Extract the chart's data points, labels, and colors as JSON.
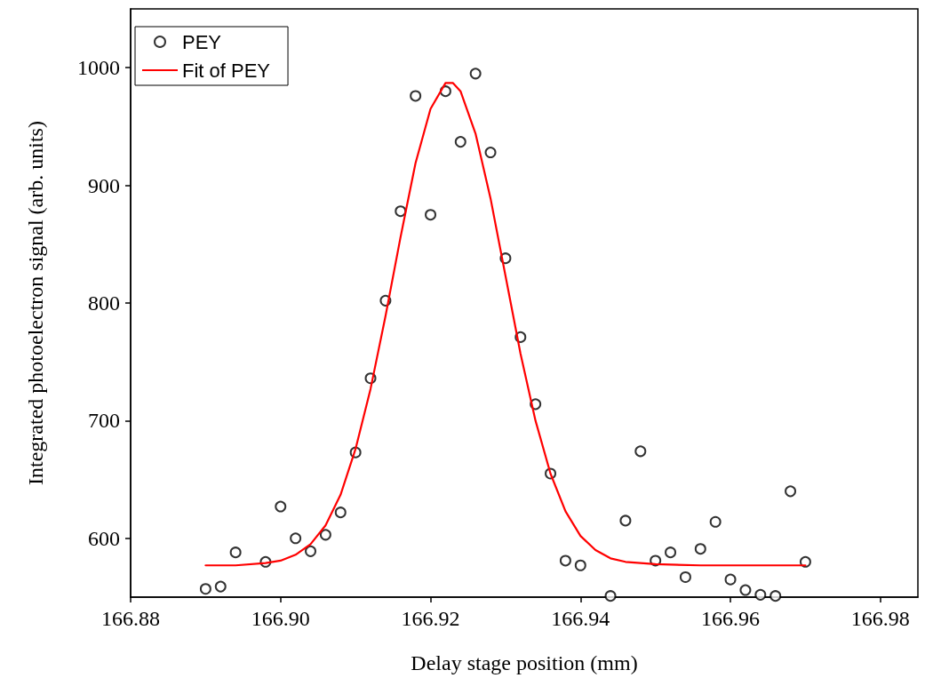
{
  "chart_data": {
    "type": "scatter",
    "xlabel": "Delay stage position (mm)",
    "ylabel": "Integrated photoelectron signal (arb. units)",
    "xlim": [
      166.88,
      166.985
    ],
    "ylim": [
      550,
      1050
    ],
    "xticks": [
      {
        "value": 166.88,
        "label": "166.88"
      },
      {
        "value": 166.9,
        "label": "166.90"
      },
      {
        "value": 166.92,
        "label": "166.92"
      },
      {
        "value": 166.94,
        "label": "166.94"
      },
      {
        "value": 166.96,
        "label": "166.96"
      },
      {
        "value": 166.98,
        "label": "166.98"
      }
    ],
    "yticks": [
      600,
      700,
      800,
      900,
      1000
    ],
    "grid": false,
    "legend": "top left",
    "series": [
      {
        "name": "PEY",
        "type": "scatter",
        "marker": "circle",
        "color": "#000000",
        "x": [
          166.89,
          166.892,
          166.894,
          166.898,
          166.9,
          166.902,
          166.904,
          166.906,
          166.908,
          166.91,
          166.912,
          166.914,
          166.916,
          166.918,
          166.92,
          166.922,
          166.924,
          166.926,
          166.928,
          166.93,
          166.932,
          166.934,
          166.936,
          166.938,
          166.94,
          166.944,
          166.946,
          166.948,
          166.95,
          166.952,
          166.954,
          166.956,
          166.958,
          166.96,
          166.962,
          166.964,
          166.966,
          166.968,
          166.97
        ],
        "values": [
          557,
          559,
          588,
          580,
          627,
          600,
          589,
          603,
          622,
          673,
          736,
          802,
          878,
          976,
          875,
          980,
          937,
          995,
          928,
          838,
          771,
          714,
          655,
          581,
          577,
          551,
          615,
          674,
          581,
          588,
          567,
          591,
          614,
          565,
          556,
          552,
          551,
          640,
          580
        ]
      },
      {
        "name": "Fit of PEY",
        "type": "line",
        "marker": "none",
        "line_style": "solid",
        "color": "#ff0000",
        "x": [
          166.89,
          166.894,
          166.898,
          166.9,
          166.902,
          166.904,
          166.906,
          166.908,
          166.91,
          166.912,
          166.914,
          166.916,
          166.918,
          166.92,
          166.922,
          166.923,
          166.924,
          166.926,
          166.928,
          166.93,
          166.932,
          166.934,
          166.936,
          166.938,
          166.94,
          166.942,
          166.944,
          166.946,
          166.95,
          166.956,
          166.97
        ],
        "values": [
          577,
          577,
          579,
          581,
          586,
          595,
          611,
          637,
          676,
          727,
          789,
          856,
          919,
          965,
          987,
          987,
          980,
          944,
          889,
          823,
          757,
          700,
          655,
          623,
          602,
          590,
          583,
          580,
          578,
          577,
          577
        ]
      }
    ]
  }
}
